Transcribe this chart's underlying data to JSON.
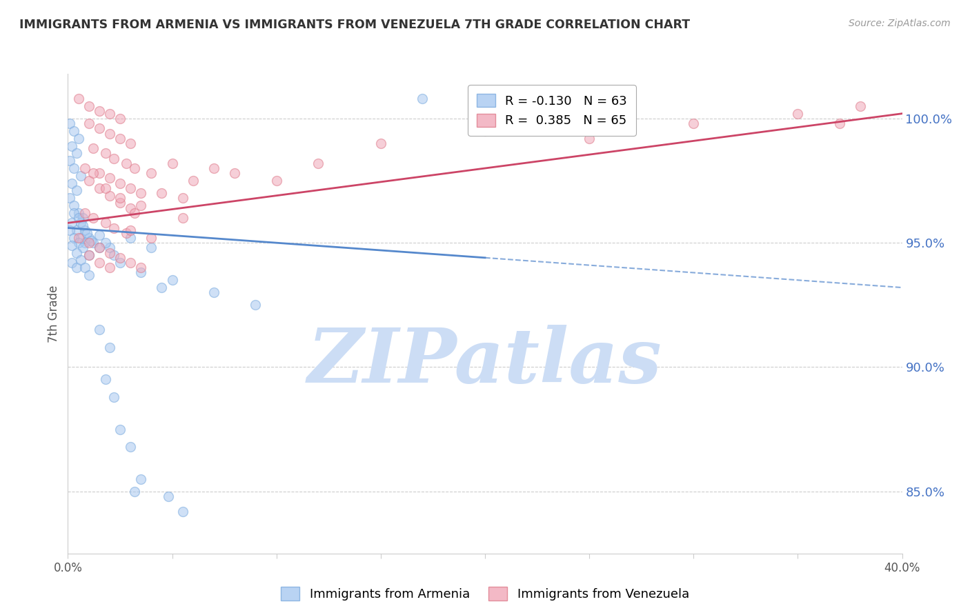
{
  "title": "IMMIGRANTS FROM ARMENIA VS IMMIGRANTS FROM VENEZUELA 7TH GRADE CORRELATION CHART",
  "source": "Source: ZipAtlas.com",
  "ylabel": "7th Grade",
  "right_yticks": [
    85.0,
    90.0,
    95.0,
    100.0
  ],
  "xlim": [
    0.0,
    40.0
  ],
  "ylim": [
    82.5,
    101.8
  ],
  "armenia_color": "#a8c8f0",
  "armenia_edge_color": "#7aaade",
  "venezuela_color": "#f0a8b8",
  "venezuela_edge_color": "#de7a8a",
  "armenia_line_color": "#5588cc",
  "venezuela_line_color": "#cc4466",
  "armenia_R": -0.13,
  "armenia_N": 63,
  "venezuela_R": 0.385,
  "venezuela_N": 65,
  "armenia_line_y0": 95.6,
  "armenia_line_y1": 93.2,
  "armenia_dash_start_x": 20.0,
  "venezuela_line_y0": 95.8,
  "venezuela_line_y1": 100.2,
  "watermark": "ZIPatlas",
  "watermark_color": "#ccddf5",
  "dot_size": 100,
  "dot_alpha": 0.55,
  "armenia_scatter": [
    [
      0.1,
      99.8
    ],
    [
      0.3,
      99.5
    ],
    [
      0.5,
      99.2
    ],
    [
      0.2,
      98.9
    ],
    [
      0.4,
      98.6
    ],
    [
      0.1,
      98.3
    ],
    [
      0.3,
      98.0
    ],
    [
      0.6,
      97.7
    ],
    [
      0.2,
      97.4
    ],
    [
      0.4,
      97.1
    ],
    [
      0.1,
      96.8
    ],
    [
      0.3,
      96.5
    ],
    [
      0.5,
      96.2
    ],
    [
      0.7,
      96.0
    ],
    [
      0.2,
      95.8
    ],
    [
      0.4,
      95.5
    ],
    [
      0.6,
      95.2
    ],
    [
      0.8,
      95.0
    ],
    [
      0.1,
      95.5
    ],
    [
      0.3,
      95.2
    ],
    [
      0.5,
      95.0
    ],
    [
      0.7,
      94.8
    ],
    [
      1.0,
      94.5
    ],
    [
      0.2,
      94.2
    ],
    [
      0.4,
      94.0
    ],
    [
      0.6,
      95.8
    ],
    [
      0.8,
      95.5
    ],
    [
      1.0,
      95.2
    ],
    [
      1.2,
      95.0
    ],
    [
      0.3,
      96.2
    ],
    [
      0.5,
      96.0
    ],
    [
      0.7,
      95.7
    ],
    [
      0.9,
      95.4
    ],
    [
      1.1,
      95.1
    ],
    [
      1.5,
      94.8
    ],
    [
      0.2,
      94.9
    ],
    [
      0.4,
      94.6
    ],
    [
      0.6,
      94.3
    ],
    [
      0.8,
      94.0
    ],
    [
      1.0,
      93.7
    ],
    [
      1.5,
      95.3
    ],
    [
      2.0,
      94.8
    ],
    [
      2.5,
      94.2
    ],
    [
      1.8,
      95.0
    ],
    [
      2.2,
      94.5
    ],
    [
      3.0,
      95.2
    ],
    [
      4.0,
      94.8
    ],
    [
      5.0,
      93.5
    ],
    [
      3.5,
      93.8
    ],
    [
      4.5,
      93.2
    ],
    [
      1.5,
      91.5
    ],
    [
      2.0,
      90.8
    ],
    [
      1.8,
      89.5
    ],
    [
      2.2,
      88.8
    ],
    [
      2.5,
      87.5
    ],
    [
      3.0,
      86.8
    ],
    [
      3.5,
      85.5
    ],
    [
      5.5,
      84.2
    ],
    [
      3.2,
      85.0
    ],
    [
      4.8,
      84.8
    ],
    [
      7.0,
      93.0
    ],
    [
      9.0,
      92.5
    ],
    [
      17.0,
      100.8
    ]
  ],
  "venezuela_scatter": [
    [
      0.5,
      100.8
    ],
    [
      1.0,
      100.5
    ],
    [
      1.5,
      100.3
    ],
    [
      2.0,
      100.2
    ],
    [
      2.5,
      100.0
    ],
    [
      1.0,
      99.8
    ],
    [
      1.5,
      99.6
    ],
    [
      2.0,
      99.4
    ],
    [
      2.5,
      99.2
    ],
    [
      3.0,
      99.0
    ],
    [
      1.2,
      98.8
    ],
    [
      1.8,
      98.6
    ],
    [
      2.2,
      98.4
    ],
    [
      2.8,
      98.2
    ],
    [
      3.2,
      98.0
    ],
    [
      1.5,
      97.8
    ],
    [
      2.0,
      97.6
    ],
    [
      2.5,
      97.4
    ],
    [
      3.0,
      97.2
    ],
    [
      3.5,
      97.0
    ],
    [
      1.0,
      97.5
    ],
    [
      1.5,
      97.2
    ],
    [
      2.0,
      96.9
    ],
    [
      2.5,
      96.6
    ],
    [
      3.0,
      96.4
    ],
    [
      0.8,
      96.2
    ],
    [
      1.2,
      96.0
    ],
    [
      1.8,
      95.8
    ],
    [
      2.2,
      95.6
    ],
    [
      2.8,
      95.4
    ],
    [
      0.5,
      95.2
    ],
    [
      1.0,
      95.0
    ],
    [
      1.5,
      94.8
    ],
    [
      2.0,
      94.6
    ],
    [
      2.5,
      94.4
    ],
    [
      3.0,
      94.2
    ],
    [
      3.5,
      94.0
    ],
    [
      1.0,
      94.5
    ],
    [
      1.5,
      94.2
    ],
    [
      2.0,
      94.0
    ],
    [
      4.0,
      97.8
    ],
    [
      5.0,
      98.2
    ],
    [
      6.0,
      97.5
    ],
    [
      7.0,
      98.0
    ],
    [
      8.0,
      97.8
    ],
    [
      3.5,
      96.5
    ],
    [
      4.5,
      97.0
    ],
    [
      5.5,
      96.8
    ],
    [
      3.0,
      95.5
    ],
    [
      4.0,
      95.2
    ],
    [
      1.8,
      97.2
    ],
    [
      2.5,
      96.8
    ],
    [
      3.2,
      96.2
    ],
    [
      0.8,
      98.0
    ],
    [
      1.2,
      97.8
    ],
    [
      10.0,
      97.5
    ],
    [
      12.0,
      98.2
    ],
    [
      15.0,
      99.0
    ],
    [
      20.0,
      99.5
    ],
    [
      25.0,
      99.2
    ],
    [
      30.0,
      99.8
    ],
    [
      35.0,
      100.2
    ],
    [
      37.0,
      99.8
    ],
    [
      38.0,
      100.5
    ],
    [
      5.5,
      96.0
    ]
  ]
}
